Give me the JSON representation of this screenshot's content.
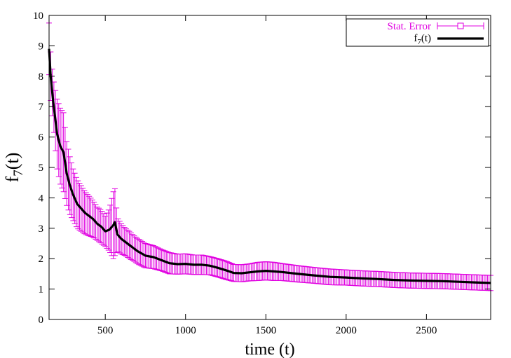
{
  "chart_data": {
    "type": "line",
    "title": "",
    "xlabel": "time (t)",
    "ylabel": {
      "main": "f",
      "sub": "7",
      "suffix": "(t)"
    },
    "xlim": [
      150,
      2900
    ],
    "ylim": [
      0,
      10
    ],
    "x_ticks": [
      500,
      1000,
      1500,
      2000,
      2500
    ],
    "y_ticks": [
      0,
      1,
      2,
      3,
      4,
      5,
      6,
      7,
      8,
      9,
      10
    ],
    "grid": false,
    "legend_position": "top-right",
    "colors": {
      "series": "#000000",
      "error": "#e000e0",
      "axis": "#000000"
    },
    "series": [
      {
        "name_main": "f",
        "name_sub": "7",
        "name_suffix": "(t)",
        "x": [
          150,
          160,
          175,
          200,
          220,
          240,
          260,
          280,
          300,
          325,
          350,
          375,
          400,
          425,
          450,
          475,
          500,
          525,
          550,
          560,
          575,
          600,
          625,
          650,
          675,
          700,
          750,
          800,
          850,
          900,
          950,
          1000,
          1050,
          1100,
          1150,
          1200,
          1250,
          1300,
          1350,
          1400,
          1450,
          1500,
          1550,
          1600,
          1700,
          1800,
          1900,
          2000,
          2100,
          2200,
          2300,
          2400,
          2500,
          2600,
          2700,
          2800,
          2900
        ],
        "values": [
          8.9,
          8.0,
          7.2,
          6.1,
          5.7,
          5.5,
          4.8,
          4.4,
          4.1,
          3.8,
          3.65,
          3.5,
          3.4,
          3.3,
          3.15,
          3.05,
          2.9,
          2.95,
          3.1,
          3.2,
          2.8,
          2.65,
          2.55,
          2.45,
          2.35,
          2.25,
          2.1,
          2.05,
          1.95,
          1.85,
          1.82,
          1.83,
          1.8,
          1.8,
          1.77,
          1.7,
          1.62,
          1.53,
          1.52,
          1.55,
          1.58,
          1.6,
          1.58,
          1.56,
          1.5,
          1.45,
          1.4,
          1.38,
          1.35,
          1.33,
          1.3,
          1.28,
          1.27,
          1.26,
          1.24,
          1.22,
          1.2
        ],
        "error": [
          0.85,
          0.8,
          0.75,
          1.15,
          1.25,
          1.3,
          1.05,
          0.95,
          0.85,
          0.8,
          0.75,
          0.7,
          0.65,
          0.6,
          0.55,
          0.55,
          0.5,
          0.7,
          1.1,
          1.1,
          0.55,
          0.5,
          0.45,
          0.45,
          0.42,
          0.42,
          0.4,
          0.38,
          0.35,
          0.35,
          0.33,
          0.33,
          0.32,
          0.32,
          0.3,
          0.3,
          0.3,
          0.28,
          0.28,
          0.28,
          0.3,
          0.3,
          0.3,
          0.28,
          0.27,
          0.26,
          0.26,
          0.25,
          0.25,
          0.25,
          0.25,
          0.25,
          0.25,
          0.25,
          0.25,
          0.25,
          0.25
        ]
      }
    ],
    "error_legend": "Stat. Error"
  }
}
